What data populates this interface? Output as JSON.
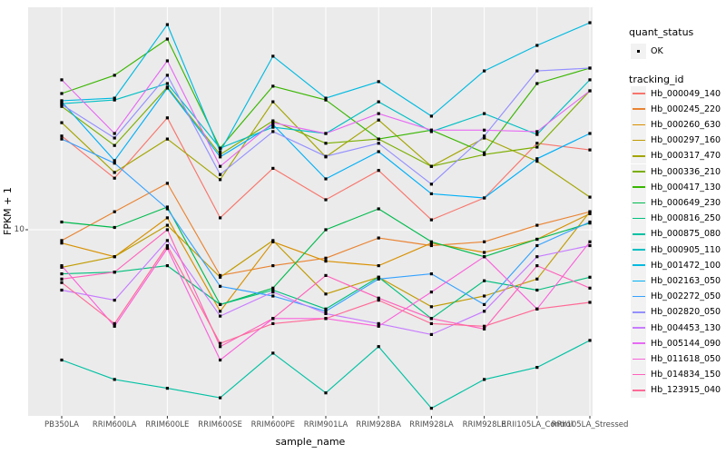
{
  "axes": {
    "x_title": "sample_name",
    "y_title": "FPKM + 1",
    "y_tick_label": "10"
  },
  "legend": {
    "quant_title": "quant_status",
    "quant_items": [
      {
        "label": "OK",
        "marker": "black-point"
      }
    ],
    "tracking_title": "tracking_id"
  },
  "style": {
    "panel_bg": "#ebebeb",
    "grid_color": "#ffffff",
    "tick_color": "#333333",
    "tick_label_color": "#4d4d4d",
    "marker_color": "#000000",
    "legend_key_bg": "#f2f2f2"
  },
  "chart_data": {
    "type": "line",
    "title": "",
    "xlabel": "sample_name",
    "ylabel": "FPKM + 1",
    "y_scale": "log10",
    "y_tick_values": [
      10
    ],
    "ylim": [
      2,
      65
    ],
    "grid": true,
    "legend_position": "right",
    "marker": "black-square",
    "quant_status": "OK",
    "x_categories": [
      "PB350LA",
      "RRIM600LA",
      "RRIM600LE",
      "RRIM600SE",
      "RRIM600PE",
      "RRIM901LA",
      "RRIM928BA",
      "RRIM928LA",
      "RRIM928LE",
      "RRII105LA_Control",
      "RRII105LA_Stressed"
    ],
    "series": [
      {
        "name": "Hb_000049_140",
        "color": "#F8766D",
        "values": [
          22.7,
          15.7,
          26.6,
          11.1,
          17.1,
          13.0,
          16.8,
          10.9,
          13.2,
          21.3,
          20.1
        ]
      },
      {
        "name": "Hb_000245_220",
        "color": "#EA8331",
        "values": [
          9.1,
          11.7,
          15.0,
          6.7,
          7.3,
          7.8,
          9.3,
          8.7,
          9.0,
          10.4,
          11.7
        ]
      },
      {
        "name": "Hb_000260_630",
        "color": "#D89000",
        "values": [
          8.9,
          7.9,
          11.1,
          4.9,
          9.0,
          7.6,
          7.3,
          8.9,
          8.2,
          9.2,
          11.5
        ]
      },
      {
        "name": "Hb_000297_160",
        "color": "#C09B00",
        "values": [
          7.2,
          7.9,
          10.4,
          6.6,
          9.1,
          5.7,
          6.6,
          5.1,
          5.6,
          6.5,
          11.7
        ]
      },
      {
        "name": "Hb_000317_470",
        "color": "#A3A500",
        "values": [
          25.5,
          16.5,
          22.1,
          15.5,
          30.6,
          18.9,
          26.1,
          17.4,
          22.3,
          18.2,
          13.3
        ]
      },
      {
        "name": "Hb_000336_210",
        "color": "#7CAE00",
        "values": [
          29.4,
          20.9,
          34.8,
          19.3,
          25.9,
          21.3,
          22.1,
          17.4,
          19.3,
          20.6,
          33.7
        ]
      },
      {
        "name": "Hb_000417_130",
        "color": "#39B600",
        "values": [
          32.9,
          38.6,
          53.0,
          20.4,
          35.1,
          31.1,
          22.1,
          23.9,
          19.6,
          35.9,
          41.1
        ]
      },
      {
        "name": "Hb_000649_230",
        "color": "#00BB4E",
        "values": [
          10.7,
          10.2,
          12.2,
          5.2,
          6.0,
          10.0,
          12.0,
          9.0,
          7.9,
          9.2,
          10.6
        ]
      },
      {
        "name": "Hb_000816_250",
        "color": "#00BF7D",
        "values": [
          6.8,
          6.9,
          7.3,
          5.2,
          5.9,
          5.0,
          6.6,
          4.6,
          6.4,
          5.9,
          6.6
        ]
      },
      {
        "name": "Hb_000875_080",
        "color": "#00C1A3",
        "values": [
          3.2,
          2.7,
          2.5,
          2.3,
          3.4,
          2.4,
          3.6,
          2.1,
          2.7,
          3.0,
          3.8
        ]
      },
      {
        "name": "Hb_000905_110",
        "color": "#00BFC4",
        "values": [
          30.1,
          31.1,
          35.9,
          20.4,
          24.5,
          23.2,
          30.6,
          23.6,
          27.6,
          23.0,
          37.1
        ]
      },
      {
        "name": "Hb_001472_100",
        "color": "#00BAE0",
        "values": [
          30.9,
          31.6,
          60.1,
          19.8,
          45.6,
          31.6,
          36.5,
          27.0,
          40.1,
          50.1,
          61.1
        ]
      },
      {
        "name": "Hb_002163_050",
        "color": "#00B0F6",
        "values": [
          30.6,
          18.3,
          34.5,
          18.9,
          25.1,
          15.6,
          19.8,
          13.7,
          13.2,
          18.6,
          23.2
        ]
      },
      {
        "name": "Hb_002272_050",
        "color": "#35A2FF",
        "values": [
          22.1,
          17.9,
          12.0,
          6.1,
          5.6,
          4.9,
          6.5,
          6.8,
          5.2,
          8.7,
          10.7
        ]
      },
      {
        "name": "Hb_002820_050",
        "color": "#9590FF",
        "values": [
          29.9,
          22.3,
          38.6,
          16.2,
          23.6,
          19.0,
          21.3,
          14.9,
          22.7,
          40.1,
          41.1
        ]
      },
      {
        "name": "Hb_004453_130",
        "color": "#C77CFF",
        "values": [
          5.9,
          5.4,
          9.1,
          4.7,
          5.8,
          4.8,
          4.4,
          4.0,
          4.9,
          7.9,
          8.7
        ]
      },
      {
        "name": "Hb_005144_090",
        "color": "#E76BF3",
        "values": [
          37.1,
          23.2,
          43.8,
          17.4,
          25.5,
          23.2,
          27.6,
          23.9,
          23.9,
          23.6,
          33.7
        ]
      },
      {
        "name": "Hb_011618_050",
        "color": "#FA62DB",
        "values": [
          7.3,
          4.3,
          8.5,
          3.2,
          4.6,
          4.6,
          4.3,
          5.8,
          7.9,
          5.0,
          9.0
        ]
      },
      {
        "name": "Hb_014834_150",
        "color": "#FF62BC",
        "values": [
          6.5,
          6.9,
          10.0,
          3.6,
          4.6,
          6.7,
          5.5,
          4.6,
          4.2,
          7.3,
          6.0
        ]
      },
      {
        "name": "Hb_123915_040",
        "color": "#FF6A98",
        "values": [
          6.3,
          4.4,
          8.7,
          3.7,
          4.4,
          4.6,
          5.4,
          4.4,
          4.3,
          5.0,
          5.3
        ]
      }
    ]
  }
}
